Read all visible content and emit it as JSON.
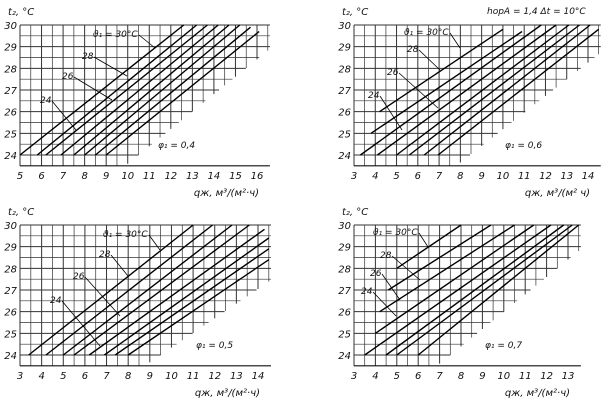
{
  "chart_data": [
    {
      "type": "line",
      "ylabel": "t₂, °C",
      "xlabel": "qж, м³/(м²·ч)",
      "xlim": [
        5,
        16
      ],
      "ylim": [
        24,
        30
      ],
      "x_ticks": [
        "5",
        "6",
        "7",
        "8",
        "9",
        "10",
        "11",
        "12",
        "13",
        "14",
        "15",
        "16"
      ],
      "y_ticks": [
        "24",
        "25",
        "26",
        "27",
        "28",
        "29",
        "30"
      ],
      "grid": true,
      "parameter_label": "φ₁ = 0,4",
      "line_labels": [
        "ϑ₁ = 30°C",
        "28",
        "26",
        "24"
      ],
      "lines": [
        [
          [
            5.0,
            24
          ],
          [
            12.6,
            30
          ]
        ],
        [
          [
            5.8,
            24
          ],
          [
            13.2,
            30
          ]
        ],
        [
          [
            6.2,
            24
          ],
          [
            13.7,
            30
          ]
        ],
        [
          [
            6.9,
            24
          ],
          [
            14.2,
            30
          ]
        ],
        [
          [
            7.5,
            24
          ],
          [
            14.7,
            30
          ]
        ],
        [
          [
            8.0,
            24
          ],
          [
            15.2,
            30
          ]
        ],
        [
          [
            8.5,
            24
          ],
          [
            15.7,
            29.9
          ]
        ],
        [
          [
            9.0,
            24
          ],
          [
            16.1,
            29.7
          ]
        ]
      ]
    },
    {
      "type": "line",
      "ylabel": "t₂, °C",
      "xlabel": "qж, м³/(м² ч)",
      "header": "hорA = 1,4   Δt = 10°C",
      "xlim": [
        3,
        14
      ],
      "ylim": [
        24,
        30
      ],
      "x_ticks": [
        "3",
        "4",
        "5",
        "6",
        "7",
        "8",
        "9",
        "10",
        "11",
        "12",
        "13",
        "14"
      ],
      "y_ticks": [
        "24",
        "25",
        "26",
        "27",
        "28",
        "29",
        "30"
      ],
      "grid": true,
      "parameter_label": "φ₁ = 0,6",
      "line_labels": [
        "ϑ₁ = 30°C",
        "28",
        "26",
        "24"
      ],
      "lines": [
        [
          [
            4.2,
            26
          ],
          [
            10.0,
            29.8
          ]
        ],
        [
          [
            3.8,
            25
          ],
          [
            10.9,
            29.7
          ]
        ],
        [
          [
            3.3,
            24
          ],
          [
            11.8,
            30
          ]
        ],
        [
          [
            4.1,
            24
          ],
          [
            12.5,
            30
          ]
        ],
        [
          [
            5.0,
            24
          ],
          [
            13.1,
            30
          ]
        ],
        [
          [
            5.6,
            24
          ],
          [
            13.6,
            30
          ]
        ],
        [
          [
            6.3,
            24
          ],
          [
            14.1,
            30
          ]
        ],
        [
          [
            6.95,
            24
          ],
          [
            14.5,
            29.8
          ]
        ]
      ]
    },
    {
      "type": "line",
      "ylabel": "t₂, °C",
      "xlabel": "qж, м³/(м²·ч)",
      "xlim": [
        3,
        14
      ],
      "ylim": [
        24,
        30
      ],
      "x_ticks": [
        "3",
        "4",
        "5",
        "6",
        "7",
        "8",
        "9",
        "10",
        "11",
        "12",
        "13",
        "14"
      ],
      "y_ticks": [
        "24",
        "25",
        "26",
        "27",
        "28",
        "29",
        "30"
      ],
      "grid": true,
      "parameter_label": "φ₁ = 0,5",
      "line_labels": [
        "ϑ₁ = 30°C",
        "28",
        "26",
        "24"
      ],
      "lines": [
        [
          [
            3.4,
            24
          ],
          [
            11.0,
            30
          ]
        ],
        [
          [
            4.2,
            24
          ],
          [
            11.9,
            30
          ]
        ],
        [
          [
            5.0,
            24
          ],
          [
            12.8,
            30
          ]
        ],
        [
          [
            5.5,
            24
          ],
          [
            13.6,
            30
          ]
        ],
        [
          [
            6.2,
            24
          ],
          [
            14.3,
            29.8
          ]
        ],
        [
          [
            6.9,
            24
          ],
          [
            14.5,
            29.4
          ]
        ],
        [
          [
            7.4,
            24
          ],
          [
            14.5,
            28.9
          ]
        ],
        [
          [
            8.0,
            24
          ],
          [
            14.5,
            28.4
          ]
        ]
      ]
    },
    {
      "type": "line",
      "ylabel": "t₂, °C",
      "xlabel": "qж, м³/(м²·ч)",
      "xlim": [
        3,
        13
      ],
      "ylim": [
        24,
        30
      ],
      "x_ticks": [
        "3",
        "4",
        "5",
        "6",
        "7",
        "8",
        "9",
        "10",
        "11",
        "12",
        "13"
      ],
      "y_ticks": [
        "24",
        "25",
        "26",
        "27",
        "28",
        "29",
        "30"
      ],
      "grid": true,
      "parameter_label": "φ₁ = 0,7",
      "line_labels": [
        "ϑ₁ = 30°C",
        "28",
        "26",
        "24"
      ],
      "lines": [
        [
          [
            5.0,
            28
          ],
          [
            8.0,
            30
          ]
        ],
        [
          [
            4.6,
            27
          ],
          [
            9.4,
            30
          ]
        ],
        [
          [
            4.2,
            26
          ],
          [
            10.5,
            30
          ]
        ],
        [
          [
            4.0,
            25
          ],
          [
            11.4,
            30
          ]
        ],
        [
          [
            3.5,
            24
          ],
          [
            12.2,
            30
          ]
        ],
        [
          [
            4.5,
            24
          ],
          [
            12.8,
            30
          ]
        ],
        [
          [
            5.0,
            24
          ],
          [
            13.2,
            30
          ]
        ],
        [
          [
            6.0,
            24
          ],
          [
            13.5,
            30
          ]
        ]
      ]
    }
  ]
}
